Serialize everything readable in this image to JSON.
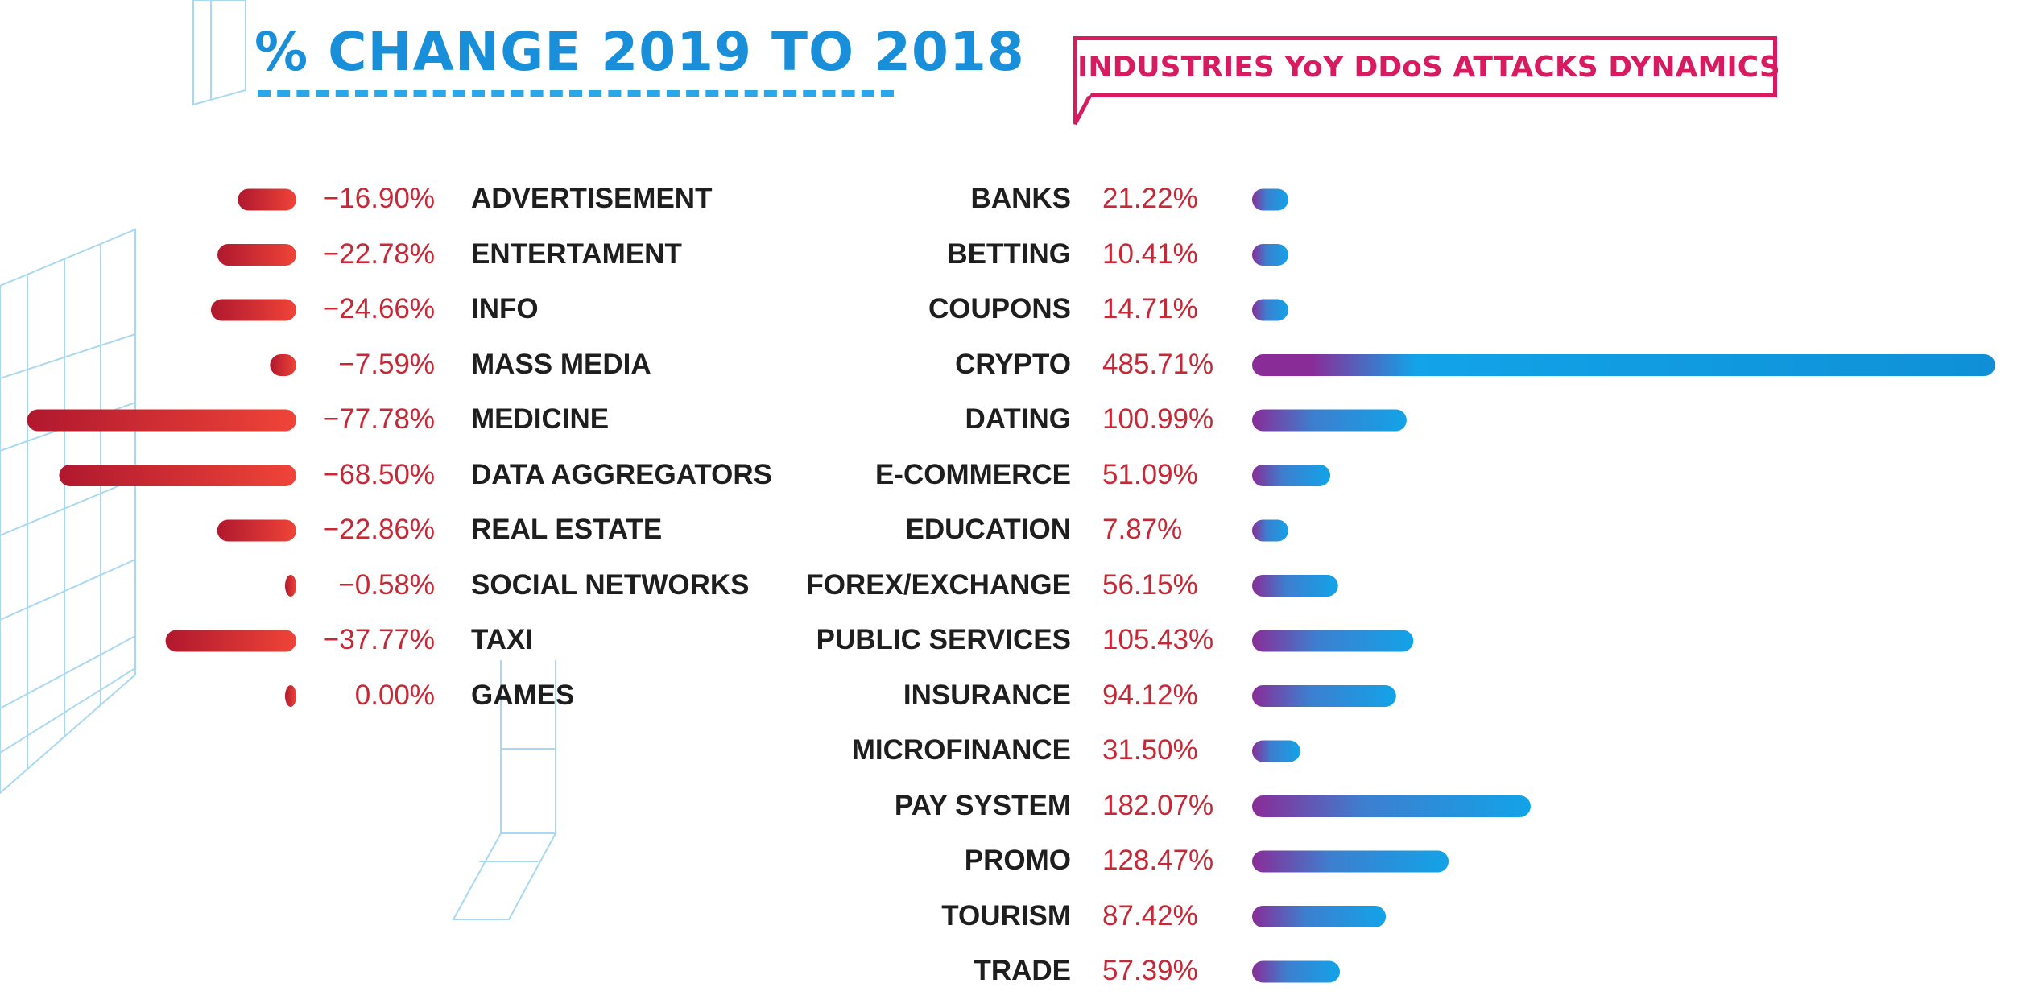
{
  "left_title": "% CHANGE 2019 TO 2018",
  "right_title": "INDUSTRIES YoY DDoS ATTACKS DYNAMICS",
  "colors": {
    "title": "#1a8fd9",
    "callout": "#d81b60",
    "negative_bar_start": "#b0182e",
    "negative_bar_end": "#ef4438",
    "positive_bar_start": "#8a2c97",
    "positive_bar_end": "#12a3e8",
    "value_text": "#c62836",
    "label_text": "#1e1e1e",
    "decor_lines": "#a9d8f0"
  },
  "chart_data": [
    {
      "type": "bar",
      "orientation": "horizontal",
      "title": "% CHANGE 2019 TO 2018",
      "categories": [
        "ADVERTISEMENT",
        "ENTERTAMENT",
        "INFO",
        "MASS MEDIA",
        "MEDICINE",
        "DATA AGGREGATORS",
        "REAL ESTATE",
        "SOCIAL NETWORKS",
        "TAXI",
        "GAMES"
      ],
      "values": [
        -16.9,
        -22.78,
        -24.66,
        -7.59,
        -77.78,
        -68.5,
        -22.86,
        -0.58,
        -37.77,
        0.0
      ],
      "labels": [
        "−16.90%",
        "−22.78%",
        "−24.66%",
        "−7.59%",
        "−77.78%",
        "−68.50%",
        "−22.86%",
        "−0.58%",
        "−37.77%",
        "0.00%"
      ],
      "xlabel": "",
      "ylabel": ""
    },
    {
      "type": "bar",
      "orientation": "horizontal",
      "title": "INDUSTRIES YoY DDoS ATTACKS DYNAMICS",
      "categories": [
        "BANKS",
        "BETTING",
        "COUPONS",
        "CRYPTO",
        "DATING",
        "E-COMMERCE",
        "EDUCATION",
        "FOREX/EXCHANGE",
        "PUBLIC SERVICES",
        "INSURANCE",
        "MICROFINANCE",
        "PAY SYSTEM",
        "PROMO",
        "TOURISM",
        "TRADE"
      ],
      "values": [
        21.22,
        10.41,
        14.71,
        485.71,
        100.99,
        51.09,
        7.87,
        56.15,
        105.43,
        94.12,
        31.5,
        182.07,
        128.47,
        87.42,
        57.39
      ],
      "labels": [
        "21.22%",
        "10.41%",
        "14.71%",
        "485.71%",
        "100.99%",
        "51.09%",
        "7.87%",
        "56.15%",
        "105.43%",
        "94.12%",
        "31.50%",
        "182.07%",
        "128.47%",
        "87.42%",
        "57.39%"
      ],
      "xlabel": "",
      "ylabel": ""
    }
  ]
}
